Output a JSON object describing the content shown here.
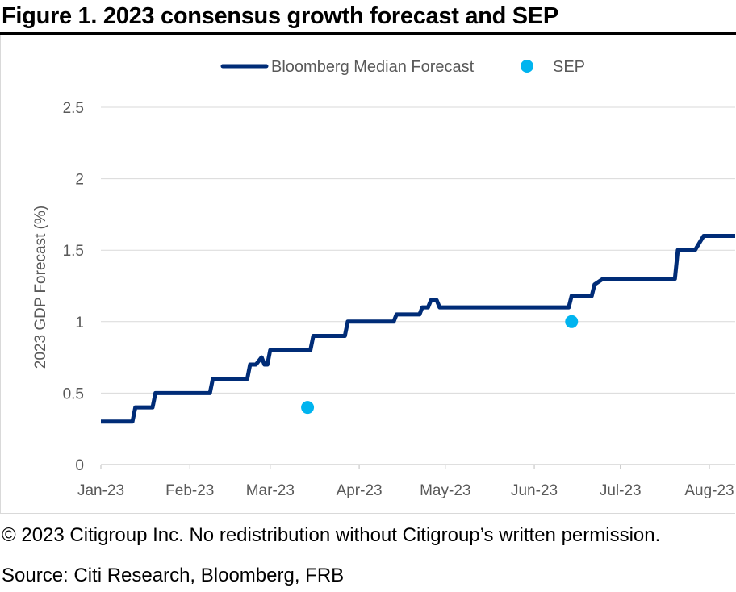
{
  "figure": {
    "title": "Figure 1. 2023 consensus growth forecast and SEP",
    "copyright": "© 2023 Citigroup Inc. No redistribution without Citigroup’s written permission.",
    "source": "Source: Citi Research, Bloomberg, FRB"
  },
  "chart_data": {
    "type": "line",
    "title": "",
    "xlabel": "",
    "ylabel": "2023 GDP Forecast (%)",
    "ylim": [
      0,
      2.5
    ],
    "yticks": [
      0,
      0.5,
      1,
      1.5,
      2,
      2.5
    ],
    "ytick_labels": [
      "0",
      "0.5",
      "1",
      "1.5",
      "2",
      "2.5"
    ],
    "xlim": [
      "2023-01-01",
      "2023-08-10"
    ],
    "xticks": [
      "2023-01-01",
      "2023-02-01",
      "2023-03-01",
      "2023-04-01",
      "2023-05-01",
      "2023-06-01",
      "2023-07-01",
      "2023-08-01"
    ],
    "xtick_labels": [
      "Jan-23",
      "Feb-23",
      "Mar-23",
      "Apr-23",
      "May-23",
      "Jun-23",
      "Jul-23",
      "Aug-23"
    ],
    "grid": "horizontal",
    "legend": "top-center",
    "series": [
      {
        "name": "Bloomberg Median Forecast",
        "kind": "step-line",
        "color": "#002c77",
        "points": [
          [
            "2023-01-01",
            0.3
          ],
          [
            "2023-01-12",
            0.3
          ],
          [
            "2023-01-13",
            0.4
          ],
          [
            "2023-01-19",
            0.4
          ],
          [
            "2023-01-20",
            0.5
          ],
          [
            "2023-02-08",
            0.5
          ],
          [
            "2023-02-09",
            0.6
          ],
          [
            "2023-02-21",
            0.6
          ],
          [
            "2023-02-22",
            0.7
          ],
          [
            "2023-02-24",
            0.7
          ],
          [
            "2023-02-26",
            0.75
          ],
          [
            "2023-02-27",
            0.7
          ],
          [
            "2023-02-28",
            0.7
          ],
          [
            "2023-03-01",
            0.8
          ],
          [
            "2023-03-15",
            0.8
          ],
          [
            "2023-03-16",
            0.9
          ],
          [
            "2023-03-27",
            0.9
          ],
          [
            "2023-03-28",
            1.0
          ],
          [
            "2023-04-13",
            1.0
          ],
          [
            "2023-04-14",
            1.05
          ],
          [
            "2023-04-22",
            1.05
          ],
          [
            "2023-04-23",
            1.1
          ],
          [
            "2023-04-25",
            1.1
          ],
          [
            "2023-04-26",
            1.15
          ],
          [
            "2023-04-28",
            1.15
          ],
          [
            "2023-04-29",
            1.1
          ],
          [
            "2023-06-13",
            1.1
          ],
          [
            "2023-06-14",
            1.18
          ],
          [
            "2023-06-21",
            1.18
          ],
          [
            "2023-06-22",
            1.26
          ],
          [
            "2023-06-25",
            1.3
          ],
          [
            "2023-07-20",
            1.3
          ],
          [
            "2023-07-21",
            1.5
          ],
          [
            "2023-07-27",
            1.5
          ],
          [
            "2023-07-30",
            1.6
          ],
          [
            "2023-08-10",
            1.6
          ]
        ]
      },
      {
        "name": "SEP",
        "kind": "marker",
        "color": "#00b4ef",
        "points": [
          [
            "2023-03-14",
            0.4
          ],
          [
            "2023-06-14",
            1.0
          ]
        ]
      }
    ]
  }
}
